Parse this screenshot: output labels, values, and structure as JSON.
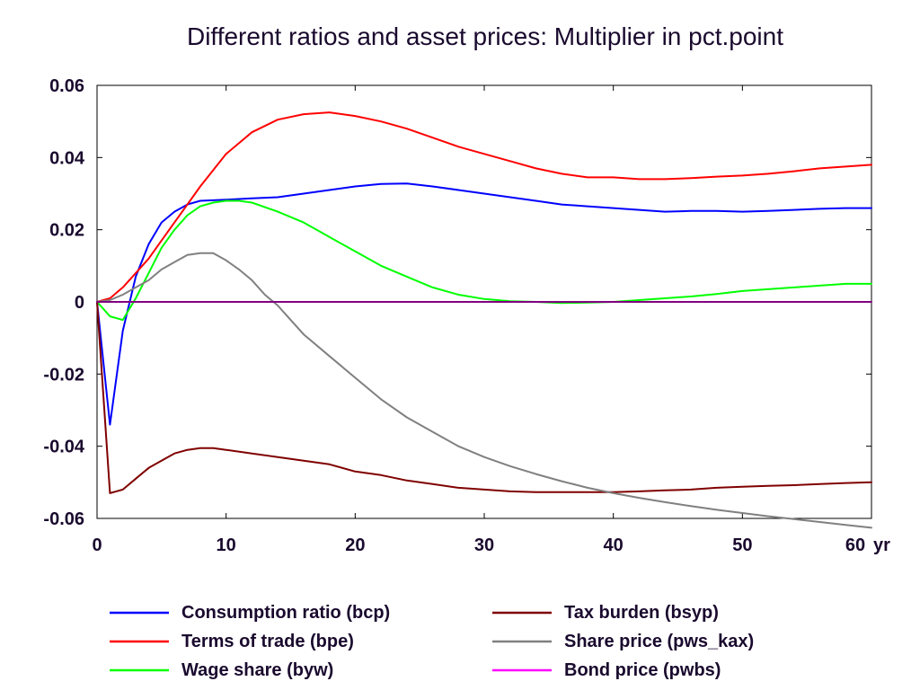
{
  "chart_data": {
    "type": "line",
    "title": "Different ratios and asset prices: Multiplier in pct.point",
    "xlabel": "",
    "ylabel": "",
    "x_unit_label": "yr",
    "xlim": [
      0,
      60
    ],
    "ylim": [
      -0.06,
      0.06
    ],
    "x_ticks": [
      0,
      10,
      20,
      30,
      40,
      50,
      60
    ],
    "x_tick_labels": [
      "0",
      "10",
      "20",
      "30",
      "40",
      "50",
      "60"
    ],
    "y_ticks": [
      0.06,
      0.04,
      0.02,
      0,
      -0.02,
      -0.04,
      -0.06
    ],
    "y_tick_labels": [
      "0.06",
      "0.04",
      "0.02",
      "0",
      "-0.02",
      "-0.04",
      "-0.06"
    ],
    "grid": false,
    "legend_position": "bottom",
    "series": [
      {
        "name": "Consumption ratio (bcp)",
        "color": "#0000ff",
        "x": [
          0,
          1,
          2,
          3,
          4,
          5,
          6,
          7,
          8,
          10,
          12,
          14,
          16,
          18,
          20,
          22,
          24,
          26,
          28,
          30,
          32,
          34,
          36,
          38,
          40,
          42,
          44,
          46,
          48,
          50,
          52,
          54,
          56,
          58,
          60
        ],
        "y": [
          0,
          -0.034,
          -0.008,
          0.007,
          0.016,
          0.022,
          0.025,
          0.027,
          0.028,
          0.0283,
          0.0287,
          0.029,
          0.03,
          0.031,
          0.032,
          0.0327,
          0.0328,
          0.032,
          0.031,
          0.03,
          0.029,
          0.028,
          0.027,
          0.0265,
          0.026,
          0.0255,
          0.025,
          0.0252,
          0.0252,
          0.025,
          0.0252,
          0.0255,
          0.0258,
          0.026,
          0.026
        ]
      },
      {
        "name": "Terms of trade (bpe)",
        "color": "#ff0000",
        "x": [
          0,
          1,
          2,
          3,
          4,
          5,
          6,
          7,
          8,
          10,
          12,
          14,
          16,
          18,
          20,
          22,
          24,
          26,
          28,
          30,
          32,
          34,
          36,
          38,
          40,
          42,
          44,
          46,
          48,
          50,
          52,
          54,
          56,
          58,
          60
        ],
        "y": [
          0,
          0.001,
          0.004,
          0.008,
          0.012,
          0.017,
          0.022,
          0.027,
          0.032,
          0.041,
          0.047,
          0.0505,
          0.052,
          0.0525,
          0.0515,
          0.05,
          0.048,
          0.0455,
          0.043,
          0.041,
          0.039,
          0.037,
          0.0355,
          0.0345,
          0.0345,
          0.034,
          0.034,
          0.0343,
          0.0347,
          0.035,
          0.0355,
          0.0362,
          0.037,
          0.0375,
          0.038
        ]
      },
      {
        "name": "Wage share (byw)",
        "color": "#00ff00",
        "x": [
          0,
          1,
          2,
          3,
          4,
          5,
          6,
          7,
          8,
          9,
          10,
          11,
          12,
          14,
          16,
          18,
          20,
          22,
          24,
          26,
          28,
          30,
          32,
          34,
          36,
          38,
          40,
          42,
          44,
          46,
          48,
          50,
          52,
          54,
          56,
          58,
          60
        ],
        "y": [
          0,
          -0.004,
          -0.005,
          0.001,
          0.008,
          0.015,
          0.02,
          0.024,
          0.0265,
          0.0275,
          0.028,
          0.028,
          0.0275,
          0.025,
          0.022,
          0.018,
          0.014,
          0.01,
          0.007,
          0.004,
          0.002,
          0.0008,
          0.0002,
          0.0,
          -0.0003,
          -0.0002,
          0.0,
          0.0005,
          0.001,
          0.0015,
          0.0022,
          0.003,
          0.0035,
          0.004,
          0.0045,
          0.005,
          0.005
        ]
      },
      {
        "name": "Tax burden (bsyp)",
        "color": "#800000",
        "x": [
          0,
          1,
          2,
          3,
          4,
          5,
          6,
          7,
          8,
          9,
          10,
          12,
          14,
          16,
          18,
          20,
          22,
          24,
          26,
          28,
          30,
          32,
          34,
          36,
          38,
          40,
          42,
          44,
          46,
          48,
          50,
          52,
          54,
          56,
          58,
          60
        ],
        "y": [
          0,
          -0.053,
          -0.052,
          -0.049,
          -0.046,
          -0.044,
          -0.042,
          -0.041,
          -0.0405,
          -0.0405,
          -0.041,
          -0.042,
          -0.043,
          -0.044,
          -0.045,
          -0.047,
          -0.048,
          -0.0495,
          -0.0505,
          -0.0515,
          -0.052,
          -0.0525,
          -0.0527,
          -0.0527,
          -0.0527,
          -0.0527,
          -0.0525,
          -0.0522,
          -0.052,
          -0.0515,
          -0.0512,
          -0.051,
          -0.0508,
          -0.0505,
          -0.0502,
          -0.05
        ]
      },
      {
        "name": "Share price (pws_kax)",
        "color": "#808080",
        "x": [
          0,
          1,
          2,
          3,
          4,
          5,
          6,
          7,
          8,
          9,
          10,
          11,
          12,
          13,
          14,
          15,
          16,
          18,
          20,
          22,
          24,
          26,
          28,
          30,
          32,
          34,
          36,
          38,
          40,
          42,
          44,
          46,
          48,
          50,
          52,
          54,
          56,
          58,
          60
        ],
        "y": [
          0,
          0.0005,
          0.002,
          0.004,
          0.006,
          0.009,
          0.011,
          0.013,
          0.0135,
          0.0135,
          0.0115,
          0.009,
          0.006,
          0.002,
          -0.001,
          -0.005,
          -0.009,
          -0.015,
          -0.021,
          -0.027,
          -0.032,
          -0.036,
          -0.04,
          -0.043,
          -0.0455,
          -0.0477,
          -0.0497,
          -0.0515,
          -0.053,
          -0.0543,
          -0.0555,
          -0.0566,
          -0.0576,
          -0.0585,
          -0.0594,
          -0.0602,
          -0.061,
          -0.0618,
          -0.0626
        ]
      },
      {
        "name": "Bond price (pwbs)",
        "color": "#ff00ff",
        "x": [
          0,
          60
        ],
        "y": [
          0,
          0
        ]
      }
    ],
    "zero_line_color": "#800080"
  }
}
